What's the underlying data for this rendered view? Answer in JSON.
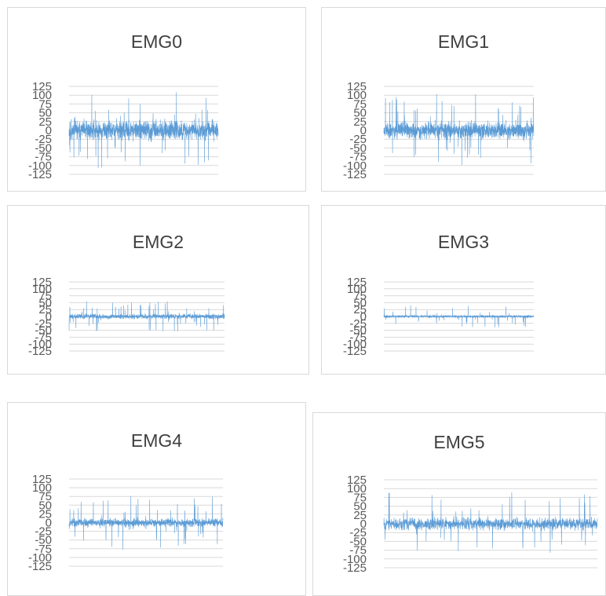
{
  "chart_data": [
    {
      "type": "line",
      "title": "EMG0",
      "ylim": [
        -125,
        125
      ],
      "yticks": [
        "125",
        "100",
        "75",
        "50",
        "25",
        "0",
        "-25",
        "-50",
        "-75",
        "-100",
        "-125"
      ],
      "grid": true,
      "series": [
        {
          "amplitude": 45,
          "spike_max": 110,
          "color": "#5b9bd5",
          "seed": 11
        }
      ]
    },
    {
      "type": "line",
      "title": "EMG1",
      "ylim": [
        -125,
        125
      ],
      "yticks": [
        "125",
        "100",
        "75",
        "50",
        "25",
        "0",
        "-25",
        "-50",
        "-75",
        "-100",
        "-125"
      ],
      "grid": true,
      "series": [
        {
          "amplitude": 40,
          "spike_max": 105,
          "color": "#5b9bd5",
          "seed": 23
        }
      ]
    },
    {
      "type": "line",
      "title": "EMG2",
      "ylim": [
        -125,
        125
      ],
      "yticks": [
        "125",
        "100",
        "75",
        "50",
        "25",
        "0",
        "-25",
        "-50",
        "-75",
        "-100",
        "-125"
      ],
      "grid": true,
      "series": [
        {
          "amplitude": 15,
          "spike_max": 55,
          "color": "#5b9bd5",
          "seed": 37
        }
      ]
    },
    {
      "type": "line",
      "title": "EMG3",
      "ylim": [
        -125,
        125
      ],
      "yticks": [
        "125",
        "100",
        "75",
        "50",
        "25",
        "0",
        "-25",
        "-50",
        "-75",
        "-100",
        "-125"
      ],
      "grid": true,
      "series": [
        {
          "amplitude": 8,
          "spike_max": 40,
          "color": "#5b9bd5",
          "seed": 41
        }
      ]
    },
    {
      "type": "line",
      "title": "EMG4",
      "ylim": [
        -125,
        125
      ],
      "yticks": [
        "125",
        "100",
        "75",
        "50",
        "25",
        "0",
        "-25",
        "-50",
        "-75",
        "-100",
        "-125"
      ],
      "grid": true,
      "series": [
        {
          "amplitude": 20,
          "spike_max": 80,
          "color": "#5b9bd5",
          "seed": 53
        }
      ]
    },
    {
      "type": "line",
      "title": "EMG5",
      "ylim": [
        -125,
        125
      ],
      "yticks": [
        "125",
        "100",
        "75",
        "50",
        "25",
        "0",
        "-25",
        "-50",
        "-75",
        "-100",
        "-125"
      ],
      "grid": true,
      "series": [
        {
          "amplitude": 30,
          "spike_max": 90,
          "color": "#5b9bd5",
          "seed": 67
        }
      ]
    }
  ],
  "colors": {
    "grid": "#d9d9d9",
    "axis_text": "#595959",
    "title": "#404040",
    "border": "#d9d9d9"
  }
}
